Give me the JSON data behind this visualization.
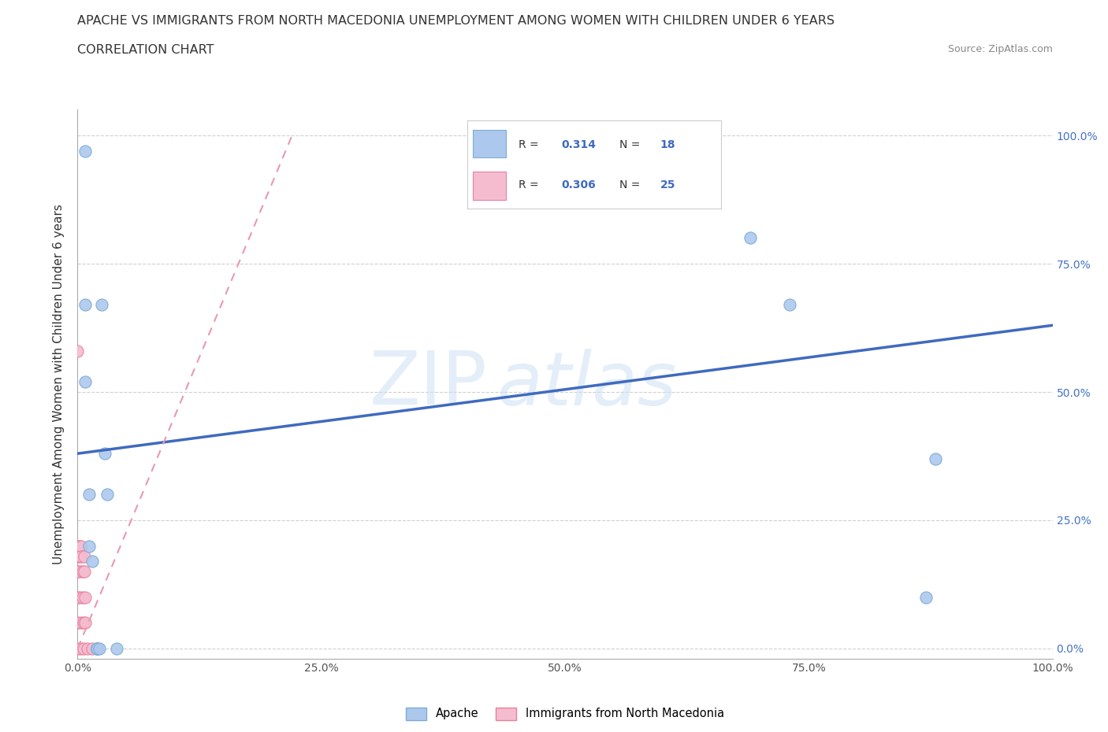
{
  "title_line1": "APACHE VS IMMIGRANTS FROM NORTH MACEDONIA UNEMPLOYMENT AMONG WOMEN WITH CHILDREN UNDER 6 YEARS",
  "title_line2": "CORRELATION CHART",
  "source_text": "Source: ZipAtlas.com",
  "ylabel": "Unemployment Among Women with Children Under 6 years",
  "xlim": [
    0.0,
    1.0
  ],
  "ylim": [
    -0.02,
    1.05
  ],
  "xtick_labels": [
    "0.0%",
    "",
    "25.0%",
    "",
    "50.0%",
    "",
    "75.0%",
    "",
    "100.0%"
  ],
  "xtick_positions": [
    0.0,
    0.125,
    0.25,
    0.375,
    0.5,
    0.625,
    0.75,
    0.875,
    1.0
  ],
  "ytick_positions": [
    0.0,
    0.25,
    0.5,
    0.75,
    1.0
  ],
  "right_ytick_labels": [
    "0.0%",
    "25.0%",
    "50.0%",
    "75.0%",
    "100.0%"
  ],
  "right_ytick_positions": [
    0.0,
    0.25,
    0.5,
    0.75,
    1.0
  ],
  "apache_color": "#adc8ed",
  "apache_edge_color": "#7aabd4",
  "nmacedonia_color": "#f5bcd0",
  "nmacedonia_edge_color": "#e8809a",
  "trend_blue_color": "#3f6abf",
  "trend_pink_color": "#e89aad",
  "scatter_size": 120,
  "apache_x": [
    0.008,
    0.008,
    0.008,
    0.012,
    0.012,
    0.015,
    0.02,
    0.02,
    0.02,
    0.022,
    0.025,
    0.028,
    0.03,
    0.04,
    0.69,
    0.73,
    0.87,
    0.88
  ],
  "apache_y": [
    0.97,
    0.67,
    0.52,
    0.3,
    0.2,
    0.17,
    0.0,
    0.0,
    0.0,
    0.0,
    0.67,
    0.38,
    0.3,
    0.0,
    0.8,
    0.67,
    0.1,
    0.37
  ],
  "nmacedonia_x": [
    0.0,
    0.0,
    0.0,
    0.0,
    0.0,
    0.0,
    0.0,
    0.002,
    0.002,
    0.002,
    0.002,
    0.003,
    0.003,
    0.004,
    0.004,
    0.005,
    0.005,
    0.006,
    0.006,
    0.007,
    0.007,
    0.008,
    0.008,
    0.01,
    0.015
  ],
  "nmacedonia_y": [
    0.58,
    0.2,
    0.18,
    0.15,
    0.1,
    0.05,
    0.0,
    0.2,
    0.18,
    0.15,
    0.1,
    0.05,
    0.0,
    0.2,
    0.18,
    0.15,
    0.1,
    0.05,
    0.0,
    0.18,
    0.15,
    0.1,
    0.05,
    0.0,
    0.0
  ],
  "R_apache": 0.314,
  "N_apache": 18,
  "R_nmacedonia": 0.306,
  "N_nmacedonia": 25,
  "apache_trend_x": [
    0.0,
    1.0
  ],
  "apache_trend_y": [
    0.38,
    0.63
  ],
  "nmacedonia_trend_x": [
    0.0,
    0.22
  ],
  "nmacedonia_trend_y": [
    0.0,
    1.0
  ],
  "watermark_zip": "ZIP",
  "watermark_atlas": "atlas",
  "background_color": "#ffffff",
  "grid_color": "#d0d0d0"
}
